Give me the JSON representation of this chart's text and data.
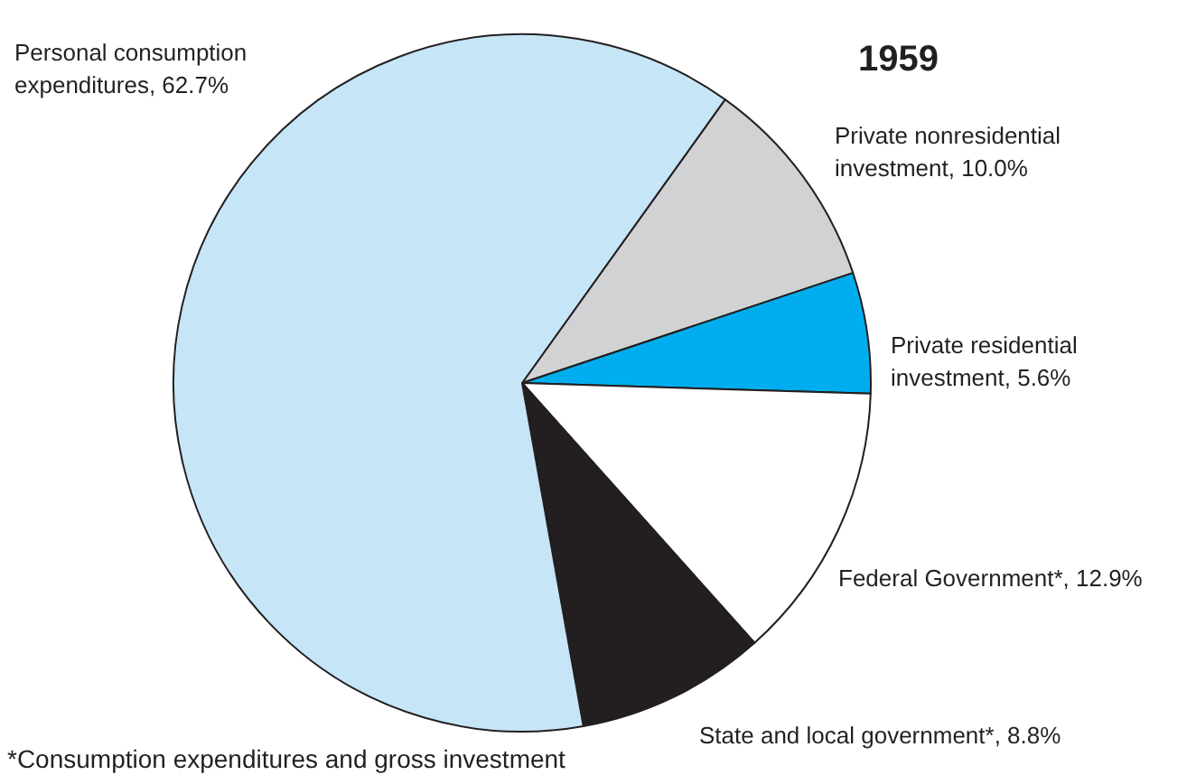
{
  "chart_data": {
    "type": "pie",
    "title": "1959",
    "categories": [
      "Private nonresidential investment",
      "Private residential investment",
      "Federal Government*",
      "State and local government*",
      "Personal consumption expenditures"
    ],
    "values": [
      10.0,
      5.6,
      12.9,
      8.8,
      62.7
    ],
    "colors": [
      "#d1d2d4",
      "#00aeef",
      "#ffffff",
      "#231f20",
      "#c6e6f8"
    ],
    "value_labels": [
      "10.0%",
      "5.6%",
      "12.9%",
      "8.8%",
      "62.7%"
    ],
    "legend": false,
    "annotations": [
      "*Consumption expenditures and gross investment"
    ]
  }
}
